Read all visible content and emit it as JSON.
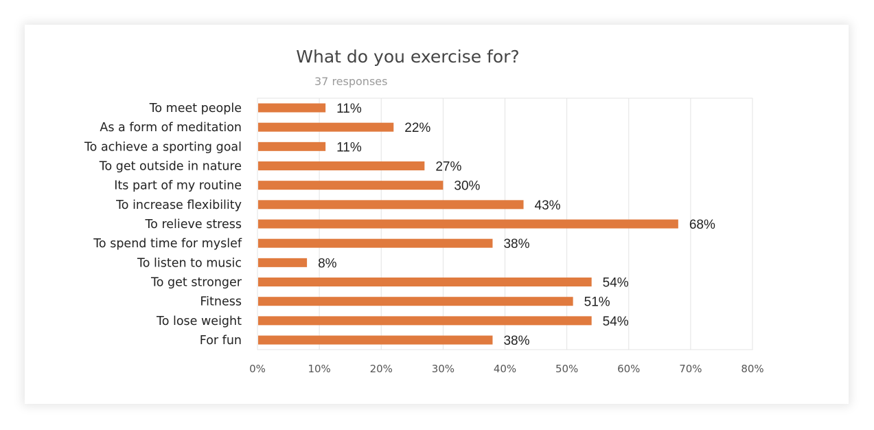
{
  "chart_data": {
    "type": "bar",
    "orientation": "horizontal",
    "title": "What do you exercise for?",
    "subtitle": "37 responses",
    "categories": [
      "To meet people",
      "As a form of meditation",
      "To achieve a sporting goal",
      "To get outside in nature",
      "Its part of my routine",
      "To increase flexibility",
      "To relieve stress",
      "To spend time for myslef",
      "To listen to music",
      "To get stronger",
      "Fitness",
      "To lose weight",
      "For fun"
    ],
    "values": [
      11,
      22,
      11,
      27,
      30,
      43,
      68,
      38,
      8,
      54,
      51,
      54,
      38
    ],
    "value_labels": [
      "11%",
      "22%",
      "11%",
      "27%",
      "30%",
      "43%",
      "68%",
      "38%",
      "8%",
      "54%",
      "51%",
      "54%",
      "38%"
    ],
    "xlim": [
      0,
      80
    ],
    "x_ticks": [
      "0%",
      "10%",
      "20%",
      "30%",
      "40%",
      "50%",
      "60%",
      "70%",
      "80%"
    ],
    "xlabel": "",
    "ylabel": "",
    "grid": true,
    "legend": "none",
    "bar_color": "#E07A3E",
    "grid_color": "#E3E3E3"
  }
}
